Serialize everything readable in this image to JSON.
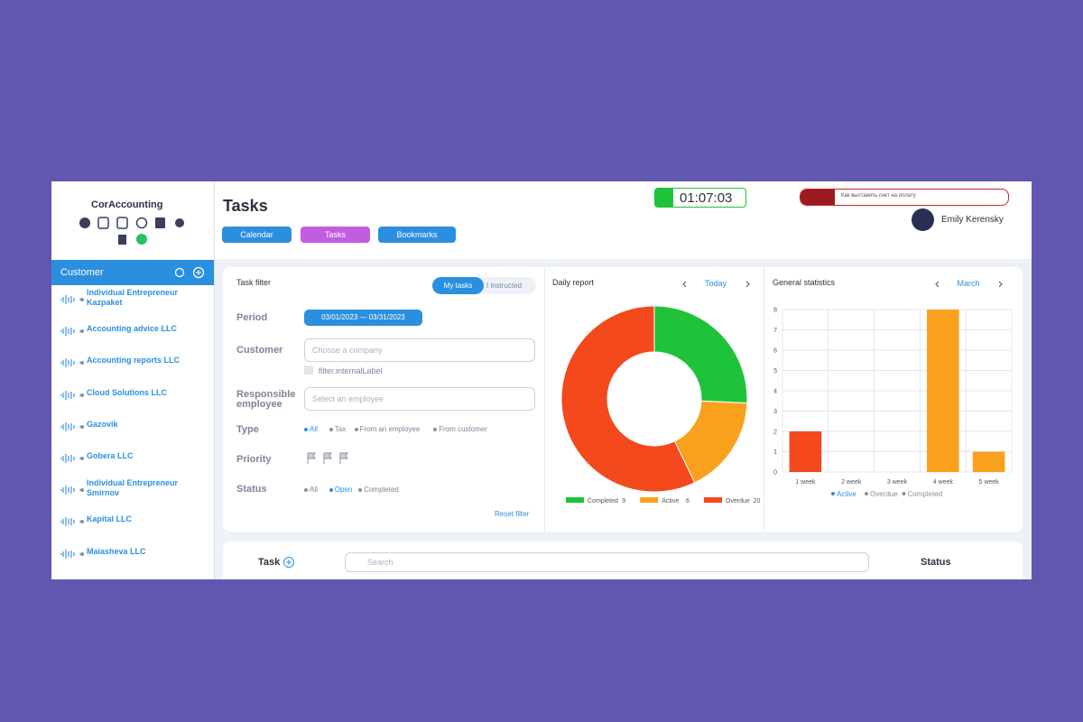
{
  "sidebar": {
    "brand": "CorAccounting",
    "section": "Customer",
    "customers": [
      "Individual Entrepreneur Kazpaket",
      "Accounting advice LLC",
      "Accounting reports LLC",
      "Cloud Solutions LLC",
      "Gazovik",
      "Gobera LLC",
      "Individual Entrepreneur Smirnov",
      "Kapital LLC",
      "Maiasheva LLC"
    ]
  },
  "header": {
    "title": "Tasks",
    "buttons": [
      "Calendar",
      "Tasks",
      "Bookmarks"
    ],
    "timer": "01:07:03",
    "search_hint": "Как выставить счет на оплату",
    "user": "Emily Kerensky"
  },
  "filter": {
    "title": "Task filter",
    "toggle": [
      "My tasks",
      "I instructed"
    ],
    "period_label": "Period",
    "period": "03/01/2023 — 03/31/2023",
    "customer_label": "Customer",
    "customer_placeholder": "Choose a company",
    "internal_label": "filter.internalLabel",
    "employee_label": "Responsible employee",
    "employee_placeholder": "Select an employee",
    "type_label": "Type",
    "type_options": [
      "All",
      "Tax",
      "From an employee",
      "From customer"
    ],
    "priority_label": "Priority",
    "status_label": "Status",
    "status_options": [
      "All",
      "Open",
      "Completed"
    ],
    "reset": "Reset filter"
  },
  "chart_data": [
    {
      "type": "donut",
      "title": "Daily report",
      "period": "Today",
      "categories": [
        "Completed",
        "Active",
        "Overdue"
      ],
      "values": [
        9,
        6,
        20
      ],
      "colors": [
        "#1fc33a",
        "#f9a11d",
        "#f3491c"
      ]
    },
    {
      "type": "bar",
      "title": "General statistics",
      "period": "March",
      "categories": [
        "1 week",
        "2 week",
        "3 week",
        "4 week",
        "5 week"
      ],
      "values": [
        2,
        0,
        0,
        8,
        1
      ],
      "colors": [
        "#f3491c",
        "#f9a11d",
        "#f9a11d",
        "#f9a11d",
        "#f9a11d"
      ],
      "ylim": [
        0,
        8
      ],
      "yticks": [
        0,
        1,
        2,
        3,
        4,
        5,
        6,
        7,
        8
      ],
      "grid": true,
      "legend": [
        "Active",
        "Overdue",
        "Completed"
      ],
      "legend_colors": [
        "#2b8fe0",
        "#8a909c",
        "#8a909c"
      ]
    }
  ],
  "task_table": {
    "task": "Task",
    "search": "Search",
    "status": "Status"
  }
}
